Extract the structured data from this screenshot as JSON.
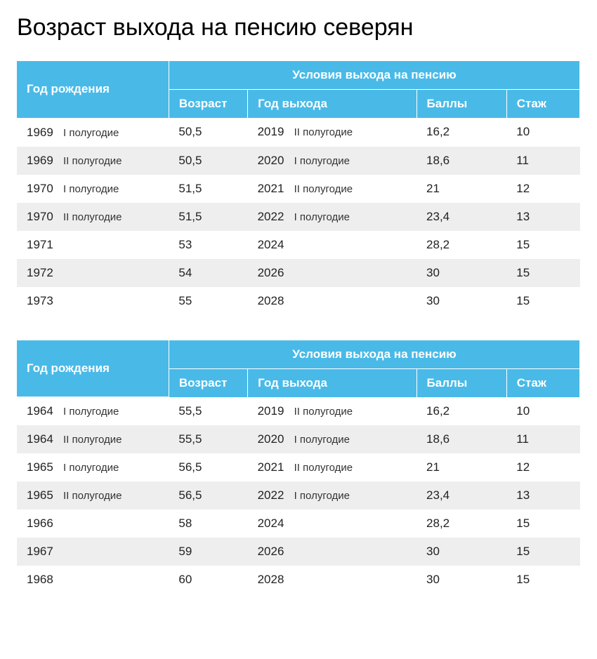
{
  "title": "Возраст выхода на пенсию северян",
  "header": {
    "birth": "Год рождения",
    "conditions": "Условия выхода на пенсию",
    "age": "Возраст",
    "exit": "Год выхода",
    "points": "Баллы",
    "exp": "Стаж"
  },
  "tables": [
    {
      "rows": [
        {
          "birth_year": "1969",
          "birth_half": "I полугодие",
          "age": "50,5",
          "exit_year": "2019",
          "exit_half": "II полугодие",
          "points": "16,2",
          "exp": "10"
        },
        {
          "birth_year": "1969",
          "birth_half": "II полугодие",
          "age": "50,5",
          "exit_year": "2020",
          "exit_half": "I полугодие",
          "points": "18,6",
          "exp": "11"
        },
        {
          "birth_year": "1970",
          "birth_half": "I полугодие",
          "age": "51,5",
          "exit_year": "2021",
          "exit_half": "II полугодие",
          "points": "21",
          "exp": "12"
        },
        {
          "birth_year": "1970",
          "birth_half": "II полугодие",
          "age": "51,5",
          "exit_year": "2022",
          "exit_half": "I полугодие",
          "points": "23,4",
          "exp": "13"
        },
        {
          "birth_year": "1971",
          "birth_half": "",
          "age": "53",
          "exit_year": "2024",
          "exit_half": "",
          "points": "28,2",
          "exp": "15"
        },
        {
          "birth_year": "1972",
          "birth_half": "",
          "age": "54",
          "exit_year": "2026",
          "exit_half": "",
          "points": "30",
          "exp": "15"
        },
        {
          "birth_year": "1973",
          "birth_half": "",
          "age": "55",
          "exit_year": "2028",
          "exit_half": "",
          "points": "30",
          "exp": "15"
        }
      ]
    },
    {
      "rows": [
        {
          "birth_year": "1964",
          "birth_half": "I полугодие",
          "age": "55,5",
          "exit_year": "2019",
          "exit_half": "II полугодие",
          "points": "16,2",
          "exp": "10"
        },
        {
          "birth_year": "1964",
          "birth_half": "II полугодие",
          "age": "55,5",
          "exit_year": "2020",
          "exit_half": "I полугодие",
          "points": "18,6",
          "exp": "11"
        },
        {
          "birth_year": "1965",
          "birth_half": "I полугодие",
          "age": "56,5",
          "exit_year": "2021",
          "exit_half": "II полугодие",
          "points": "21",
          "exp": "12"
        },
        {
          "birth_year": "1965",
          "birth_half": "II полугодие",
          "age": "56,5",
          "exit_year": "2022",
          "exit_half": "I полугодие",
          "points": "23,4",
          "exp": "13"
        },
        {
          "birth_year": "1966",
          "birth_half": "",
          "age": "58",
          "exit_year": "2024",
          "exit_half": "",
          "points": "28,2",
          "exp": "15"
        },
        {
          "birth_year": "1967",
          "birth_half": "",
          "age": "59",
          "exit_year": "2026",
          "exit_half": "",
          "points": "30",
          "exp": "15"
        },
        {
          "birth_year": "1968",
          "birth_half": "",
          "age": "60",
          "exit_year": "2028",
          "exit_half": "",
          "points": "30",
          "exp": "15"
        }
      ]
    }
  ],
  "style": {
    "header_bg": "#49bae8",
    "header_fg": "#ffffff",
    "row_odd_bg": "#ffffff",
    "row_even_bg": "#eeeeee",
    "title_fontsize": 34,
    "body_fontsize": 17
  }
}
